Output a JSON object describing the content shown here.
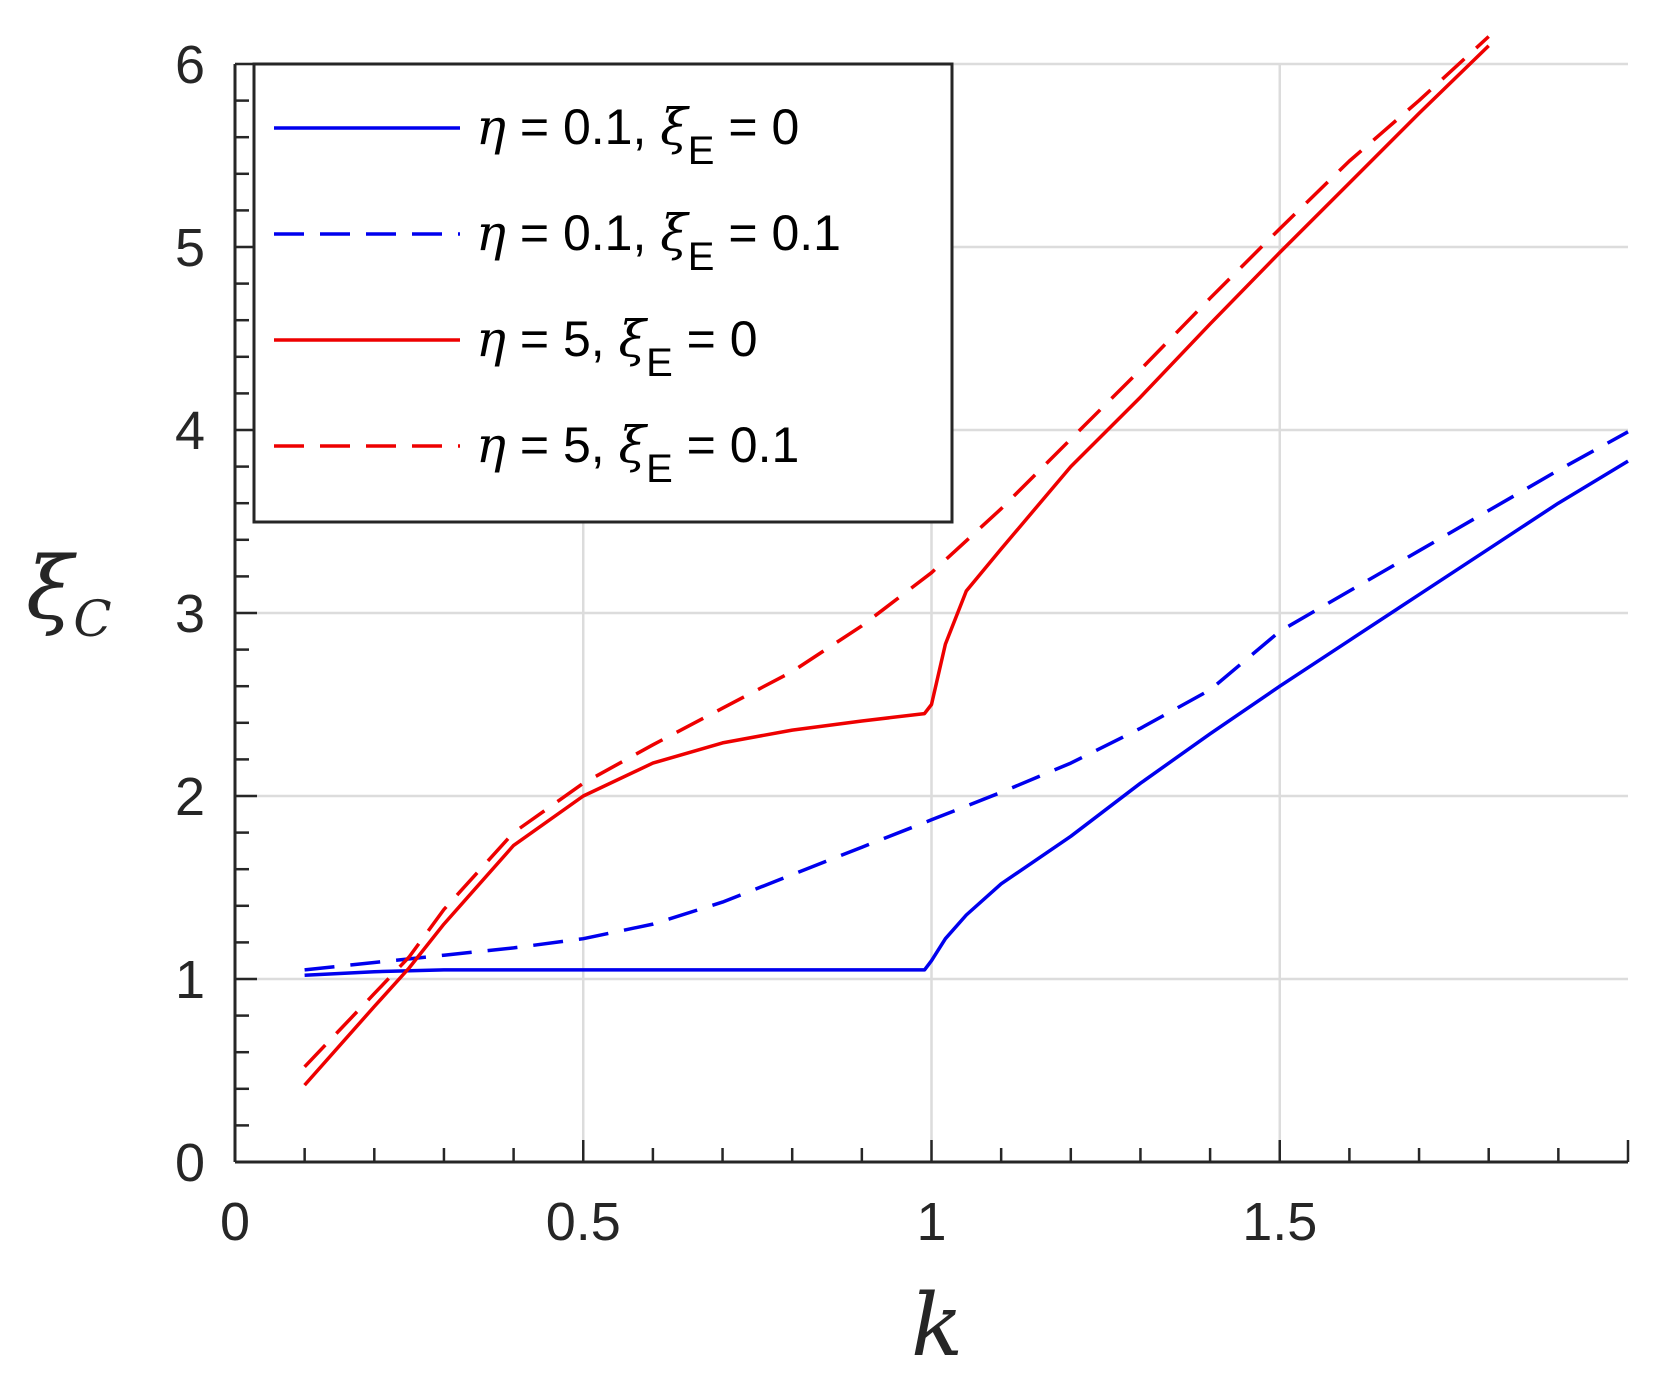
{
  "chart_data": {
    "type": "line",
    "xlabel": "k",
    "ylabel": {
      "base": "ξ",
      "sub": "C"
    },
    "xlim": [
      0,
      2
    ],
    "ylim": [
      0,
      6
    ],
    "xticks": [
      0,
      0.5,
      1,
      1.5
    ],
    "xtick_labels": [
      "0",
      "0.5",
      "1",
      "1.5"
    ],
    "yticks": [
      0,
      1,
      2,
      3,
      4,
      5,
      6
    ],
    "ytick_labels": [
      "0",
      "1",
      "2",
      "3",
      "4",
      "5",
      "6"
    ],
    "grid": true,
    "legend_position": "top-left",
    "series": [
      {
        "name": "η = 0.1, ξE = 0",
        "label_parts": {
          "eta": "η",
          "eta_val": " = 0.1, ",
          "xi": "ξ",
          "sub": "E",
          "xi_val": " = 0"
        },
        "color": "#0000ee",
        "dash": "solid",
        "x": [
          0.1,
          0.2,
          0.3,
          0.4,
          0.5,
          0.6,
          0.7,
          0.8,
          0.9,
          0.99,
          1.0,
          1.02,
          1.05,
          1.1,
          1.2,
          1.3,
          1.4,
          1.5,
          1.6,
          1.7,
          1.8,
          1.9,
          2.0
        ],
        "y": [
          1.02,
          1.04,
          1.05,
          1.05,
          1.05,
          1.05,
          1.05,
          1.05,
          1.05,
          1.05,
          1.1,
          1.22,
          1.35,
          1.52,
          1.78,
          2.07,
          2.34,
          2.6,
          2.85,
          3.1,
          3.35,
          3.6,
          3.83
        ]
      },
      {
        "name": "η = 0.1, ξE = 0.1",
        "label_parts": {
          "eta": "η",
          "eta_val": " = 0.1, ",
          "xi": "ξ",
          "sub": "E",
          "xi_val": " = 0.1"
        },
        "color": "#0000ee",
        "dash": "dashed",
        "x": [
          0.1,
          0.2,
          0.3,
          0.4,
          0.5,
          0.6,
          0.7,
          0.8,
          0.9,
          1.0,
          1.1,
          1.2,
          1.3,
          1.4,
          1.5,
          1.6,
          1.7,
          1.8,
          1.9,
          2.0
        ],
        "y": [
          1.05,
          1.09,
          1.13,
          1.17,
          1.22,
          1.3,
          1.42,
          1.57,
          1.72,
          1.87,
          2.02,
          2.18,
          2.37,
          2.58,
          2.9,
          3.12,
          3.34,
          3.56,
          3.78,
          3.99
        ]
      },
      {
        "name": "η = 5, ξE = 0",
        "label_parts": {
          "eta": "η",
          "eta_val": " = 5, ",
          "xi": "ξ",
          "sub": "E",
          "xi_val": " = 0"
        },
        "color": "#ee0000",
        "dash": "solid",
        "x": [
          0.1,
          0.2,
          0.25,
          0.3,
          0.4,
          0.5,
          0.6,
          0.7,
          0.8,
          0.9,
          0.99,
          1.0,
          1.02,
          1.05,
          1.1,
          1.2,
          1.3,
          1.4,
          1.5,
          1.6,
          1.7,
          1.8
        ],
        "y": [
          0.42,
          0.85,
          1.06,
          1.3,
          1.73,
          2.0,
          2.18,
          2.29,
          2.36,
          2.41,
          2.45,
          2.5,
          2.83,
          3.12,
          3.35,
          3.8,
          4.18,
          4.58,
          4.97,
          5.35,
          5.73,
          6.1
        ]
      },
      {
        "name": "η = 5, ξE = 0.1",
        "label_parts": {
          "eta": "η",
          "eta_val": " = 5, ",
          "xi": "ξ",
          "sub": "E",
          "xi_val": " = 0.1"
        },
        "color": "#ee0000",
        "dash": "dashed",
        "x": [
          0.1,
          0.2,
          0.25,
          0.3,
          0.4,
          0.5,
          0.6,
          0.7,
          0.8,
          0.9,
          1.0,
          1.1,
          1.2,
          1.3,
          1.4,
          1.5,
          1.6,
          1.7,
          1.8
        ],
        "y": [
          0.52,
          0.92,
          1.12,
          1.38,
          1.8,
          2.07,
          2.28,
          2.48,
          2.68,
          2.93,
          3.22,
          3.57,
          3.95,
          4.33,
          4.72,
          5.1,
          5.47,
          5.8,
          6.15
        ]
      }
    ]
  },
  "colors": {
    "axis": "#262626",
    "grid": "#dcdcdc"
  }
}
